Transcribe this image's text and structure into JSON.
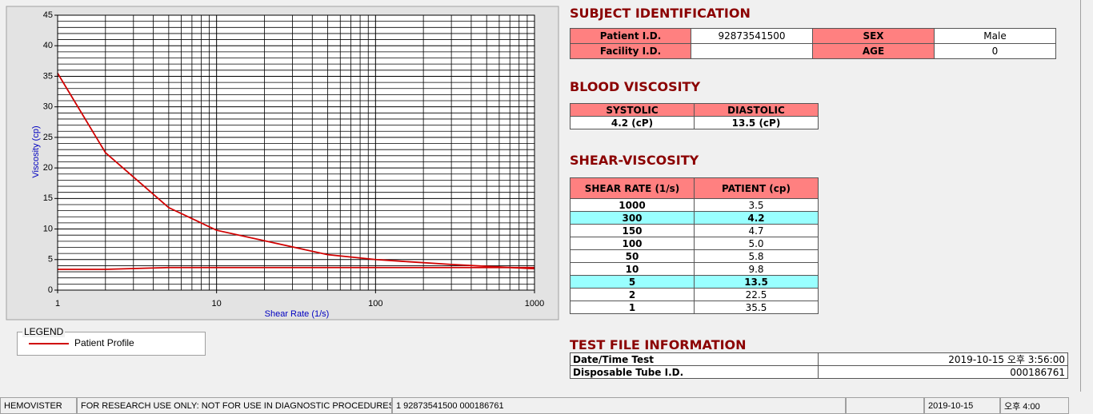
{
  "chart_data": {
    "type": "line",
    "x_label": "Shear Rate (1/s)",
    "y_label": "Viscosity (cp)",
    "x": [
      1,
      2,
      5,
      10,
      50,
      100,
      150,
      300,
      1000
    ],
    "series": [
      {
        "name": "Patient Profile",
        "color": "#d00000",
        "values": [
          35.5,
          22.5,
          13.5,
          9.8,
          5.8,
          5.0,
          4.7,
          4.2,
          3.5
        ]
      },
      {
        "color": "#d00000",
        "values": [
          3.4,
          3.4,
          3.7,
          3.7,
          3.7,
          3.7,
          3.7,
          3.7,
          3.7
        ]
      }
    ],
    "xscale": "log",
    "xlim": [
      1,
      1000
    ],
    "xticks": [
      1,
      10,
      100,
      1000
    ],
    "xminorticks": [
      2,
      3,
      4,
      5,
      6,
      7,
      8,
      9,
      20,
      30,
      40,
      50,
      60,
      70,
      80,
      90,
      200,
      300,
      400,
      500,
      600,
      700,
      800,
      900
    ],
    "ylim": [
      0,
      45
    ],
    "yticks": [
      0,
      5,
      10,
      15,
      20,
      25,
      30,
      35,
      40,
      45
    ],
    "yminorticks": [
      1,
      2,
      3,
      4,
      6,
      7,
      8,
      9,
      11,
      12,
      13,
      14,
      16,
      17,
      18,
      19,
      21,
      22,
      23,
      24,
      26,
      27,
      28,
      29,
      31,
      32,
      33,
      34,
      36,
      37,
      38,
      39,
      41,
      42,
      43,
      44
    ],
    "grid": true
  },
  "legend": {
    "title": "LEGEND"
  },
  "subject_identification": {
    "title": "SUBJECT IDENTIFICATION",
    "fields": [
      {
        "label": "Patient I.D.",
        "value": "92873541500"
      },
      {
        "label": "SEX",
        "value": "Male"
      },
      {
        "label": "Facility I.D.",
        "value": null
      },
      {
        "label": "AGE",
        "value": "0"
      }
    ]
  },
  "blood_viscosity": {
    "title": "BLOOD VISCOSITY",
    "headers": [
      "SYSTOLIC",
      "DIASTOLIC"
    ],
    "values": [
      "4.2 (cP)",
      "13.5 (cP)"
    ]
  },
  "shear_viscosity": {
    "title": "SHEAR-VISCOSITY",
    "headers": [
      "SHEAR RATE (1/s)",
      "PATIENT (cp)"
    ],
    "rows": [
      [
        "1000",
        "3.5"
      ],
      [
        "300",
        "4.2"
      ],
      [
        "150",
        "4.7"
      ],
      [
        "100",
        "5.0"
      ],
      [
        "50",
        "5.8"
      ],
      [
        "10",
        "9.8"
      ],
      [
        "5",
        "13.5"
      ],
      [
        "2",
        "22.5"
      ],
      [
        "1",
        "35.5"
      ]
    ]
  },
  "test_file": {
    "title": "TEST FILE INFORMATION",
    "rows": [
      [
        "Date/Time Test",
        "2019-10-15   오후 3:56:00"
      ],
      [
        "Disposable Tube I.D.",
        "000186761"
      ]
    ]
  },
  "status_bar": [
    "HEMOVISTER",
    "FOR RESEARCH USE ONLY: NOT FOR USE IN DIAGNOSTIC PROCEDURES",
    "1  92873541500  000186761",
    "2019-10-15",
    "오후 4:00"
  ]
}
